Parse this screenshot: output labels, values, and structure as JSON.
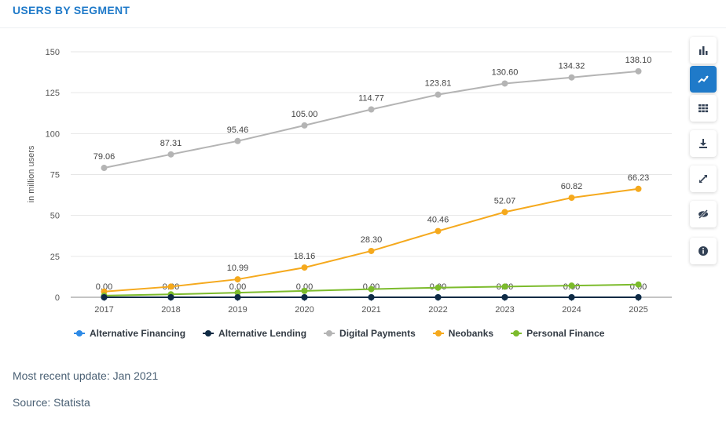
{
  "header": {
    "title": "USERS BY SEGMENT"
  },
  "chart_data": {
    "type": "line",
    "title": "USERS BY SEGMENT",
    "xlabel": "",
    "ylabel": "in million users",
    "ylim": [
      0,
      150
    ],
    "yticks": [
      0,
      25,
      50,
      75,
      100,
      125,
      150
    ],
    "grid": true,
    "legend": "bottom",
    "categories": [
      "2017",
      "2018",
      "2019",
      "2020",
      "2021",
      "2022",
      "2023",
      "2024",
      "2025"
    ],
    "series": [
      {
        "name": "Alternative Financing",
        "color": "#2d8ae6",
        "values": [
          0,
          0,
          0,
          0,
          0,
          0,
          0,
          0,
          0
        ],
        "labels": []
      },
      {
        "name": "Alternative Lending",
        "color": "#0f2a44",
        "values": [
          0,
          0,
          0,
          0,
          0,
          0,
          0,
          0,
          0
        ],
        "labels": []
      },
      {
        "name": "Digital Payments",
        "color": "#b4b4b4",
        "values": [
          79.06,
          87.31,
          95.46,
          105.0,
          114.77,
          123.81,
          130.6,
          134.32,
          138.1
        ],
        "labels": [
          "79.06",
          "87.31",
          "95.46",
          "105.00",
          "114.77",
          "123.81",
          "130.60",
          "134.32",
          "138.10"
        ]
      },
      {
        "name": "Neobanks",
        "color": "#f5a91d",
        "values": [
          3.5,
          6.5,
          10.99,
          18.16,
          28.3,
          40.46,
          52.07,
          60.82,
          66.23
        ],
        "labels": [
          "",
          "",
          "10.99",
          "18.16",
          "28.30",
          "40.46",
          "52.07",
          "60.82",
          "66.23"
        ]
      },
      {
        "name": "Personal Finance",
        "color": "#7cbb2c",
        "values": [
          1.0,
          1.8,
          2.8,
          3.9,
          5.0,
          5.9,
          6.5,
          7.1,
          7.8
        ],
        "labels": []
      }
    ],
    "zero_labels": [
      "0.00",
      "0.00",
      "0.00",
      "0.00",
      "0.00",
      "0.00",
      "0.00",
      "0.00",
      "0.00"
    ]
  },
  "toolbar": {
    "items": [
      {
        "icon": "bar-chart-icon",
        "active": false
      },
      {
        "icon": "line-chart-icon",
        "active": true
      },
      {
        "icon": "table-icon",
        "active": false
      },
      {
        "icon": "download-icon",
        "active": false
      },
      {
        "icon": "fullscreen-icon",
        "active": false
      },
      {
        "icon": "hide-icon",
        "active": false
      },
      {
        "icon": "info-icon",
        "active": false
      }
    ]
  },
  "footer": {
    "update": "Most recent update: Jan 2021",
    "source": "Source: Statista"
  }
}
